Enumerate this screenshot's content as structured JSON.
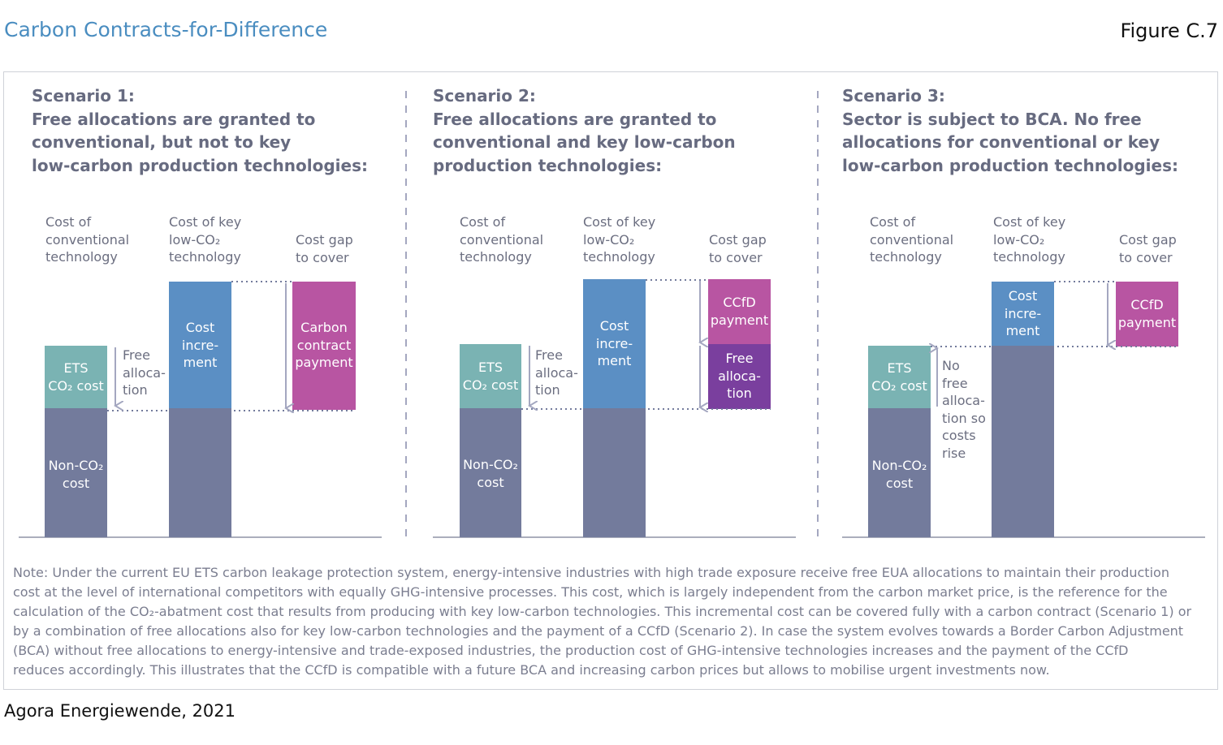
{
  "header": {
    "title": "Carbon Contracts-for-Difference",
    "figure_number": "Figure C.7"
  },
  "scenarios": [
    {
      "heading": [
        "Scenario 1:",
        "Free allocations are granted to",
        "conventional, but not to key",
        "low-carbon production technologies:"
      ],
      "col_conventional": [
        "Cost of",
        "conventional",
        "technology"
      ],
      "col_lowco2": [
        "Cost of key",
        "low-CO₂",
        "technology"
      ],
      "col_gap": [
        "Cost gap",
        "to cover"
      ],
      "ets": [
        "ETS",
        "CO₂ cost"
      ],
      "nonco2": [
        "Non-CO₂",
        "cost"
      ],
      "free_allocation_side": [
        "Free",
        "alloca-",
        "tion"
      ],
      "cost_increment": [
        "Cost",
        "incre-",
        "ment"
      ],
      "gap_box": [
        "Carbon",
        "contract",
        "payment"
      ]
    },
    {
      "heading": [
        "Scenario 2:",
        "Free allocations are granted to",
        "conventional and key low-carbon",
        "production technologies:"
      ],
      "col_conventional": [
        "Cost of",
        "conventional",
        "technology"
      ],
      "col_lowco2": [
        "Cost of key",
        "low-CO₂",
        "technology"
      ],
      "col_gap": [
        "Cost gap",
        "to cover"
      ],
      "ets": [
        "ETS",
        "CO₂ cost"
      ],
      "nonco2": [
        "Non-CO₂",
        "cost"
      ],
      "free_allocation_side": [
        "Free",
        "alloca-",
        "tion"
      ],
      "cost_increment": [
        "Cost",
        "incre-",
        "ment"
      ],
      "gap_top": [
        "CCfD",
        "payment"
      ],
      "gap_bottom": [
        "Free",
        "alloca-",
        "tion"
      ]
    },
    {
      "heading": [
        "Scenario 3:",
        "Sector is subject to BCA. No free",
        "allocations for conventional or key",
        "low-carbon production technologies:"
      ],
      "col_conventional": [
        "Cost of",
        "conventional",
        "technology"
      ],
      "col_lowco2": [
        "Cost of key",
        "low-CO₂",
        "technology"
      ],
      "col_gap": [
        "Cost gap",
        "to cover"
      ],
      "ets": [
        "ETS",
        "CO₂ cost"
      ],
      "nonco2": [
        "Non-CO₂",
        "cost"
      ],
      "no_free_side": [
        "No",
        "free",
        "alloca-",
        "tion so",
        "costs",
        "rise"
      ],
      "cost_increment": [
        "Cost",
        "incre-",
        "ment"
      ],
      "gap_box": [
        "CCfD",
        "payment"
      ]
    }
  ],
  "note": [
    "Note: Under the current EU ETS carbon leakage protection system, energy-intensive industries with high trade exposure receive free EUA allocations to maintain their production",
    "cost at the level of international competitors with equally GHG-intensive processes. This cost, which is largely independent from the carbon market price, is the reference for the",
    "calculation of the CO₂-abatment cost that results from producing with key low-carbon technologies. This incremental cost can be covered fully with a carbon contract (Scenario 1) or",
    "by a combination of free allocations also for key low-carbon technologies and the payment of a CCfD (Scenario 2). In case the system evolves towards a Border Carbon Adjustment",
    "(BCA) without free allocations to energy-intensive and trade-exposed industries, the production cost of GHG-intensive technologies increases and the payment of the CCfD",
    "reduces accordingly. This illustrates that the CCfD is compatible with a future BCA and increasing carbon prices but allows to mobilise urgent investments now."
  ],
  "source": "Agora Energiewende, 2021",
  "colors": {
    "title_blue": "#4a8dc0",
    "nonco2_slate": "#737b9c",
    "ets_teal": "#7ab3b3",
    "increment_blue": "#5b8fc4",
    "contract_magenta": "#b855a2",
    "free_alloc_purple": "#7a3f9e",
    "arrow_grey": "#a4a7c0"
  }
}
